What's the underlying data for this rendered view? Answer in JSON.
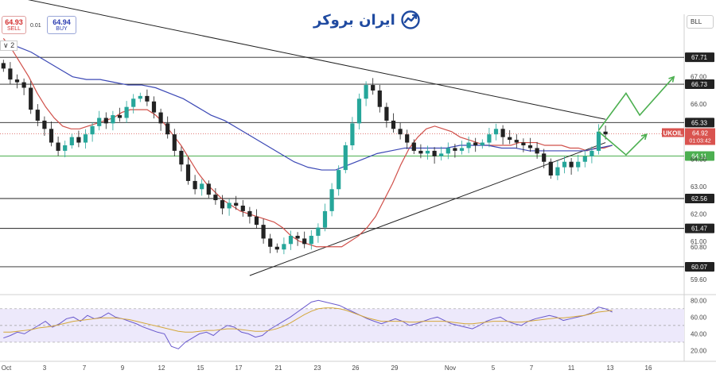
{
  "brand": {
    "name": "ایران بروکر",
    "color": "#1f4aa0"
  },
  "quote": {
    "sell_price": "64.93",
    "sell_label": "SELL",
    "spread": "0.01",
    "buy_price": "64.94",
    "buy_label": "BUY",
    "collapse_label": "∨ 2",
    "symbol_box": "BLL"
  },
  "colors": {
    "candle_up": "#26a69a",
    "candle_down": "#222222",
    "ma_fast": "#d0504a",
    "ma_slow": "#3b48b5",
    "level_green": "#4caf50",
    "arrow": "#4caf50",
    "rsi_line": "#6a5acd",
    "rsi_ma": "#d4a73a",
    "price_tag": "#d9534f"
  },
  "chart_data": {
    "type": "candlestick",
    "symbol": "UKOIL",
    "last_price": "64.92",
    "countdown": "01:03:42",
    "x_ticks": [
      "Oct",
      "3",
      "7",
      "9",
      "12",
      "15",
      "17",
      "21",
      "23",
      "26",
      "29",
      "Nov",
      "5",
      "7",
      "11",
      "13",
      "16"
    ],
    "y_ticks": [
      "67.00",
      "66.00",
      "65.00",
      "64.00",
      "63.00",
      "62.00",
      "61.00",
      "60.80",
      "59.60"
    ],
    "ylim": [
      59.2,
      68.7
    ],
    "horizontal_levels": [
      {
        "label": "67.71",
        "value": 67.71
      },
      {
        "label": "66.73",
        "value": 66.73
      },
      {
        "label": "65.33",
        "value": 65.33
      },
      {
        "label": "64.11",
        "value": 64.11,
        "color": "green"
      },
      {
        "label": "62.56",
        "value": 62.56
      },
      {
        "label": "61.47",
        "value": 61.47
      },
      {
        "label": "60.07",
        "value": 60.07
      }
    ],
    "close_series": [
      67.3,
      66.9,
      66.8,
      66.6,
      65.8,
      65.4,
      65.1,
      64.6,
      64.3,
      64.5,
      64.8,
      64.6,
      64.9,
      65.2,
      65.5,
      65.3,
      65.6,
      65.5,
      65.9,
      66.2,
      66.3,
      66.1,
      65.7,
      65.3,
      64.9,
      64.3,
      63.8,
      63.2,
      62.9,
      63.1,
      62.7,
      62.5,
      62.2,
      62.4,
      62.3,
      62.1,
      61.9,
      61.6,
      61.1,
      60.8,
      60.7,
      60.9,
      61.2,
      61.1,
      60.9,
      61.2,
      61.5,
      62.1,
      62.9,
      63.6,
      64.5,
      65.3,
      66.2,
      66.7,
      66.5,
      65.9,
      65.4,
      65.1,
      64.9,
      64.6,
      64.3,
      64.2,
      64.3,
      64.1,
      64.2,
      64.4,
      64.3,
      64.4,
      64.6,
      64.5,
      64.6,
      64.9,
      65.1,
      64.8,
      64.7,
      64.6,
      64.5,
      64.4,
      64.2,
      63.9,
      63.4,
      63.7,
      63.9,
      63.7,
      63.9,
      64.1,
      64.3,
      65.0,
      64.9
    ],
    "ma_fast": [
      68.4,
      68.0,
      67.5,
      67.0,
      66.4,
      65.9,
      65.5,
      65.2,
      65.1,
      65.1,
      65.2,
      65.3,
      65.4,
      65.5,
      65.7,
      65.8,
      65.8,
      65.8,
      65.6,
      65.3,
      64.9,
      64.5,
      64.0,
      63.5,
      63.1,
      62.8,
      62.5,
      62.3,
      62.1,
      62.0,
      61.9,
      61.8,
      61.7,
      61.5,
      61.2,
      61.0,
      60.9,
      60.8,
      60.8,
      60.8,
      60.8,
      61.0,
      61.2,
      61.5,
      61.9,
      62.5,
      63.1,
      63.8,
      64.4,
      64.8,
      65.1,
      65.2,
      65.1,
      65.0,
      64.8,
      64.7,
      64.6,
      64.5,
      64.5,
      64.5,
      64.5,
      64.6,
      64.6,
      64.6,
      64.5,
      64.5,
      64.5,
      64.4,
      64.4,
      64.3,
      64.4,
      64.4,
      64.5
    ],
    "ma_slow": [
      68.3,
      68.1,
      67.9,
      67.6,
      67.3,
      67.0,
      66.9,
      66.9,
      66.8,
      66.7,
      66.7,
      66.6,
      66.4,
      66.2,
      65.9,
      65.6,
      65.4,
      65.1,
      64.8,
      64.5,
      64.2,
      63.9,
      63.7,
      63.6,
      63.6,
      63.8,
      64.0,
      64.2,
      64.3,
      64.4,
      64.4,
      64.4,
      64.4,
      64.5,
      64.5,
      64.5,
      64.4,
      64.4,
      64.3,
      64.3,
      64.3,
      64.3,
      64.3,
      64.4,
      64.5
    ],
    "trendlines": [
      {
        "from": [
          0,
          70.0
        ],
        "to": [
          88,
          65.45
        ],
        "label": "descending resistance"
      },
      {
        "from": [
          36,
          59.75
        ],
        "to": [
          88,
          64.6
        ],
        "label": "ascending support"
      }
    ],
    "projection_up": [
      [
        87,
        65.05
      ],
      [
        91,
        66.4
      ],
      [
        93,
        65.6
      ],
      [
        98,
        67.0
      ]
    ],
    "projection_down": [
      [
        87,
        65.0
      ],
      [
        91,
        64.15
      ],
      [
        94,
        64.9
      ]
    ],
    "rsi": {
      "ylim": [
        10,
        85
      ],
      "y_ticks": [
        "80.00",
        "60.00",
        "40.00",
        "20.00"
      ],
      "bands": [
        70,
        50,
        30
      ],
      "values": [
        35,
        38,
        42,
        40,
        45,
        50,
        55,
        48,
        52,
        58,
        60,
        55,
        62,
        58,
        60,
        65,
        60,
        58,
        55,
        52,
        48,
        45,
        42,
        40,
        25,
        22,
        30,
        35,
        40,
        42,
        38,
        45,
        50,
        48,
        42,
        40,
        36,
        38,
        45,
        50,
        55,
        60,
        66,
        72,
        78,
        80,
        78,
        76,
        74,
        70,
        66,
        62,
        58,
        55,
        52,
        55,
        58,
        55,
        50,
        52,
        55,
        58,
        60,
        56,
        52,
        50,
        48,
        46,
        50,
        55,
        58,
        60,
        55,
        52,
        50,
        55,
        58,
        60,
        62,
        60,
        56,
        58,
        60,
        62,
        65,
        72,
        70,
        66
      ],
      "ma": [
        42,
        42,
        43,
        44,
        45,
        47,
        48,
        49,
        51,
        53,
        55,
        56,
        57,
        58,
        59,
        59,
        59,
        58,
        57,
        55,
        53,
        51,
        49,
        47,
        45,
        43,
        42,
        42,
        43,
        44,
        44,
        45,
        46,
        46,
        45,
        44,
        43,
        43,
        44,
        46,
        49,
        53,
        58,
        63,
        67,
        70,
        71,
        71,
        70,
        68,
        65,
        62,
        59,
        57,
        55,
        55,
        55,
        55,
        54,
        54,
        55,
        55,
        55,
        55,
        54,
        53,
        52,
        52,
        53,
        54,
        55,
        55,
        55,
        54,
        54,
        55,
        56,
        57,
        58,
        59,
        59,
        60,
        61,
        62,
        64,
        66,
        67,
        68
      ]
    }
  }
}
